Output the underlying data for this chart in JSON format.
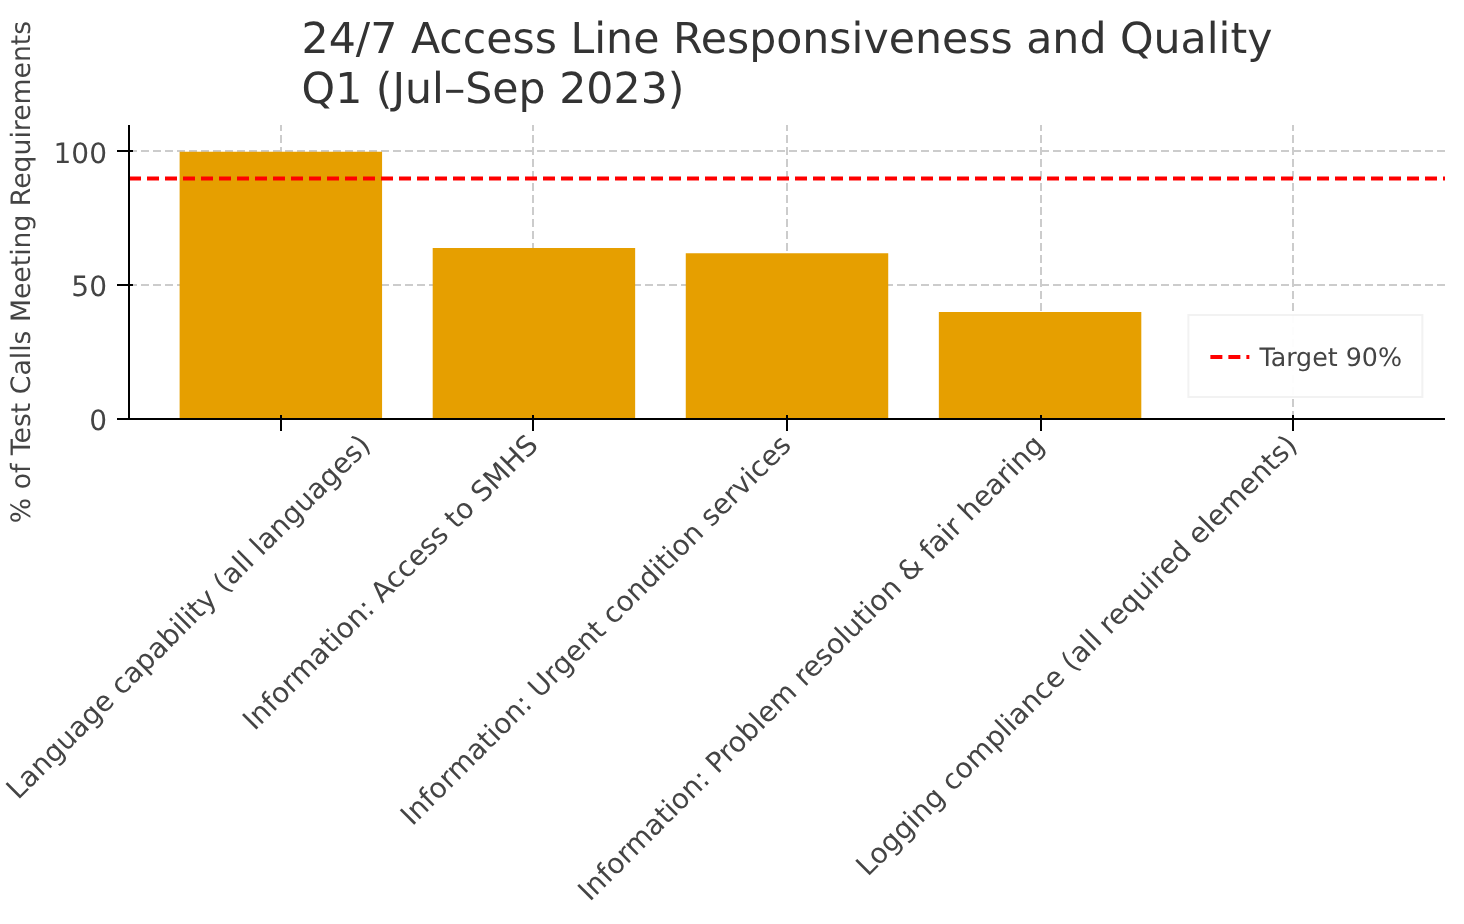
{
  "chart_data": {
    "type": "bar",
    "title": "24/7 Access Line Responsiveness and Quality\nQ1 (Jul–Sep 2023)",
    "ylabel": "% of Test Calls Meeting Requirements",
    "categories": [
      "Language capability (all languages)",
      "Information: Access to SMHS",
      "Information: Urgent condition services",
      "Information: Problem resolution & fair hearing",
      "Logging compliance (all required elements)"
    ],
    "values": [
      100,
      64,
      62,
      40,
      0
    ],
    "color": "#e69f00",
    "ylim": [
      0,
      110
    ],
    "yticks": [
      0,
      50,
      100
    ],
    "grid": true,
    "legend": "bottom right",
    "ref_lines": [
      {
        "axis": "y",
        "value": 90,
        "label": "Target 90%",
        "color": "#ff0000",
        "line_style": "dashed"
      }
    ]
  }
}
